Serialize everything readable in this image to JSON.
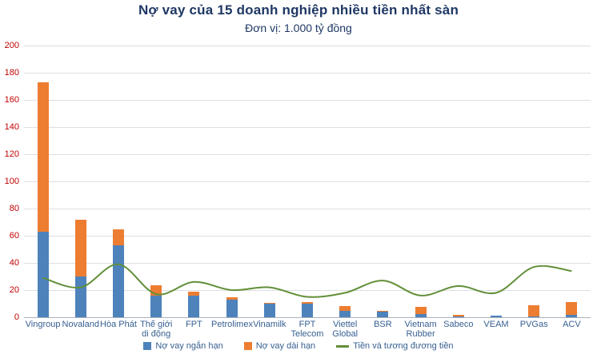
{
  "title": "Nợ vay của 15 doanh nghiệp nhiều tiền nhất sàn",
  "subtitle": "Đơn vị: 1.000 tỷ đồng",
  "chart_data": {
    "type": "bar",
    "stacked": true,
    "title": "Nợ vay của 15 doanh nghiệp nhiều tiền nhất sàn",
    "subtitle": "Đơn vị: 1.000 tỷ đồng",
    "xlabel": "",
    "ylabel": "",
    "ylim": [
      0,
      200
    ],
    "ytick_step": 20,
    "grid": true,
    "legend_position": "bottom",
    "categories": [
      "Vingroup",
      "Novaland",
      "Hòa Phát",
      "Thế giới di động",
      "FPT",
      "Petrolimex",
      "Vinamilk",
      "FPT Telecom",
      "Viettel Global",
      "BSR",
      "Vietnam Rubber",
      "Sabeco",
      "VEAM",
      "PVGas",
      "ACV"
    ],
    "series": [
      {
        "name": "Nợ vay ngắn hạn",
        "type": "bar",
        "color": "#4d82bb",
        "values": [
          63,
          30,
          53,
          16,
          16,
          13,
          10,
          10,
          5,
          4,
          2.5,
          0.5,
          1,
          0.5,
          1.5
        ]
      },
      {
        "name": "Nợ vay dài hạn",
        "type": "bar",
        "color": "#ed7d31",
        "values": [
          110,
          42,
          12,
          7.5,
          3,
          2,
          0.5,
          1,
          3,
          0.5,
          5,
          1.5,
          0,
          8.5,
          9.5
        ]
      },
      {
        "name": "Tiền và tương đương tiền",
        "type": "line",
        "color": "#628f38",
        "values": [
          29,
          22,
          39,
          17,
          26,
          20,
          22,
          15,
          18,
          27,
          16,
          23,
          18,
          37,
          34
        ]
      }
    ],
    "colors": {
      "short_term_bar": "#4d82bb",
      "long_term_bar": "#ed7d31",
      "cash_line": "#628f38",
      "y_axis_labels": "#c00000",
      "x_axis_labels": "#365f91",
      "title_text": "#1f3864",
      "gridline": "#dcdfe3",
      "background": "#ffffff"
    }
  }
}
